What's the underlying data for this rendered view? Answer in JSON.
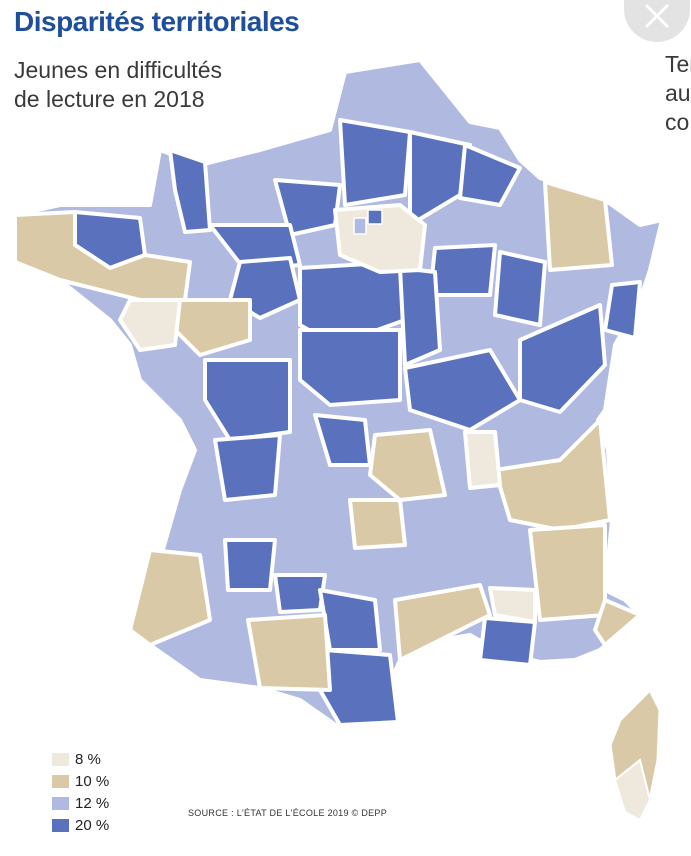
{
  "header": {
    "title": "Disparités territoriales",
    "subtitle_line1": "Jeunes en difficultés",
    "subtitle_line2": "de lecture en 2018",
    "cut_off_text": [
      "Ter",
      "au",
      "co"
    ]
  },
  "close_button": {
    "icon": "close-icon"
  },
  "legend": [
    {
      "label": "8 %",
      "color": "#efe8dc"
    },
    {
      "label": "10 %",
      "color": "#d9c9a6"
    },
    {
      "label": "12 %",
      "color": "#b0bae0"
    },
    {
      "label": "20 %",
      "color": "#5a72bd"
    }
  ],
  "source": "SOURCE : L'ÉTAT DE L'ÉCOLE 2019 © DEPP",
  "map": {
    "region": "France métropolitaine et Corse",
    "land_color": "#b0bae0",
    "border_color": "#ffffff"
  }
}
